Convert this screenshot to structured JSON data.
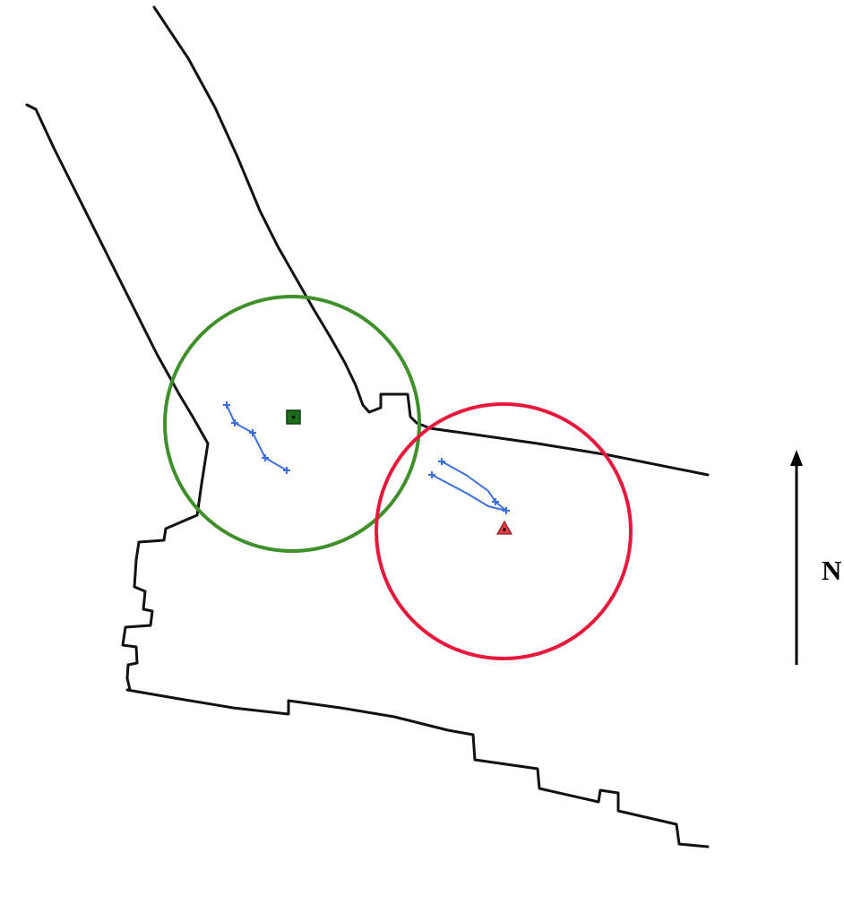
{
  "colors": {
    "solid_roads": "#111111",
    "dashed_boundaries": "#111111",
    "green_zone": "#3f8f2a",
    "green_marker": "#1e6b1e",
    "red_zone": "#e8183c",
    "red_marker": "#e03c46",
    "tracks": "#3b6fe0",
    "north_arrow": "#000000"
  },
  "north_arrow": {
    "label": "N",
    "icon": "north-arrow-icon"
  },
  "zones": [
    {
      "id": "green",
      "marker_icon": "square-marker-icon"
    },
    {
      "id": "red",
      "marker_icon": "triangle-marker-icon"
    }
  ],
  "tracks": {
    "marker_icon": "plus-marker-icon"
  }
}
